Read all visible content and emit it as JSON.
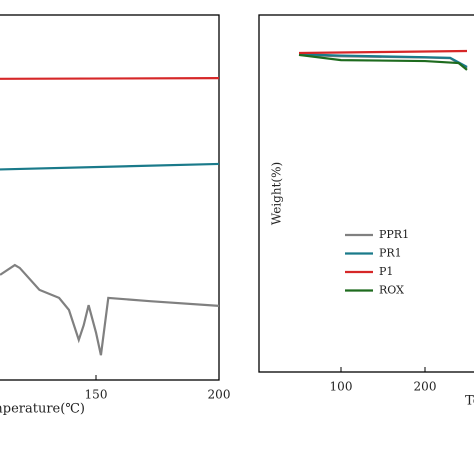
{
  "chart_data": [
    {
      "type": "line",
      "x_label": "Temperature(℃)",
      "xlim": [
        100,
        200
      ],
      "xticks": [
        150,
        200
      ],
      "ylim": [
        0,
        100
      ],
      "series": [
        {
          "color": "#d62728",
          "x": [
            100,
            200
          ],
          "values": [
            82.5,
            82.7
          ]
        },
        {
          "color": "#1a7a8a",
          "x": [
            100,
            200
          ],
          "values": [
            57.5,
            59.2
          ]
        },
        {
          "color": "#808080",
          "x": [
            111,
            117,
            119,
            127,
            135,
            139,
            143,
            145,
            147,
            150,
            152,
            155,
            172,
            200
          ],
          "values": [
            28.8,
            31.5,
            30.7,
            24.7,
            22.5,
            19.2,
            11,
            15,
            20.5,
            13,
            6.8,
            22.5,
            21.6,
            20.3
          ]
        }
      ]
    },
    {
      "type": "line",
      "x_label": "Temperature(℃)",
      "y_label": "Weight(%)",
      "xlim": [
        50,
        300
      ],
      "xticks": [
        100,
        200
      ],
      "ylim": [
        0,
        110
      ],
      "series": [
        {
          "name": "PPR1",
          "color": "#808080",
          "x": [
            50,
            100,
            200,
            230,
            250
          ],
          "values": [
            97.7,
            97.3,
            96.9,
            96.7,
            93.7
          ]
        },
        {
          "name": "PR1",
          "color": "#1a7a8a",
          "x": [
            50,
            100,
            200,
            230,
            250
          ],
          "values": [
            97.9,
            97.5,
            97.0,
            96.8,
            94.0
          ]
        },
        {
          "name": "P1",
          "color": "#d62728",
          "x": [
            50,
            150,
            250
          ],
          "values": [
            98.3,
            98.6,
            98.9
          ]
        },
        {
          "name": "ROX",
          "color": "#1e6b1e",
          "x": [
            50,
            100,
            200,
            240,
            250
          ],
          "values": [
            97.7,
            96.1,
            95.8,
            95.2,
            93.1
          ]
        }
      ]
    }
  ]
}
